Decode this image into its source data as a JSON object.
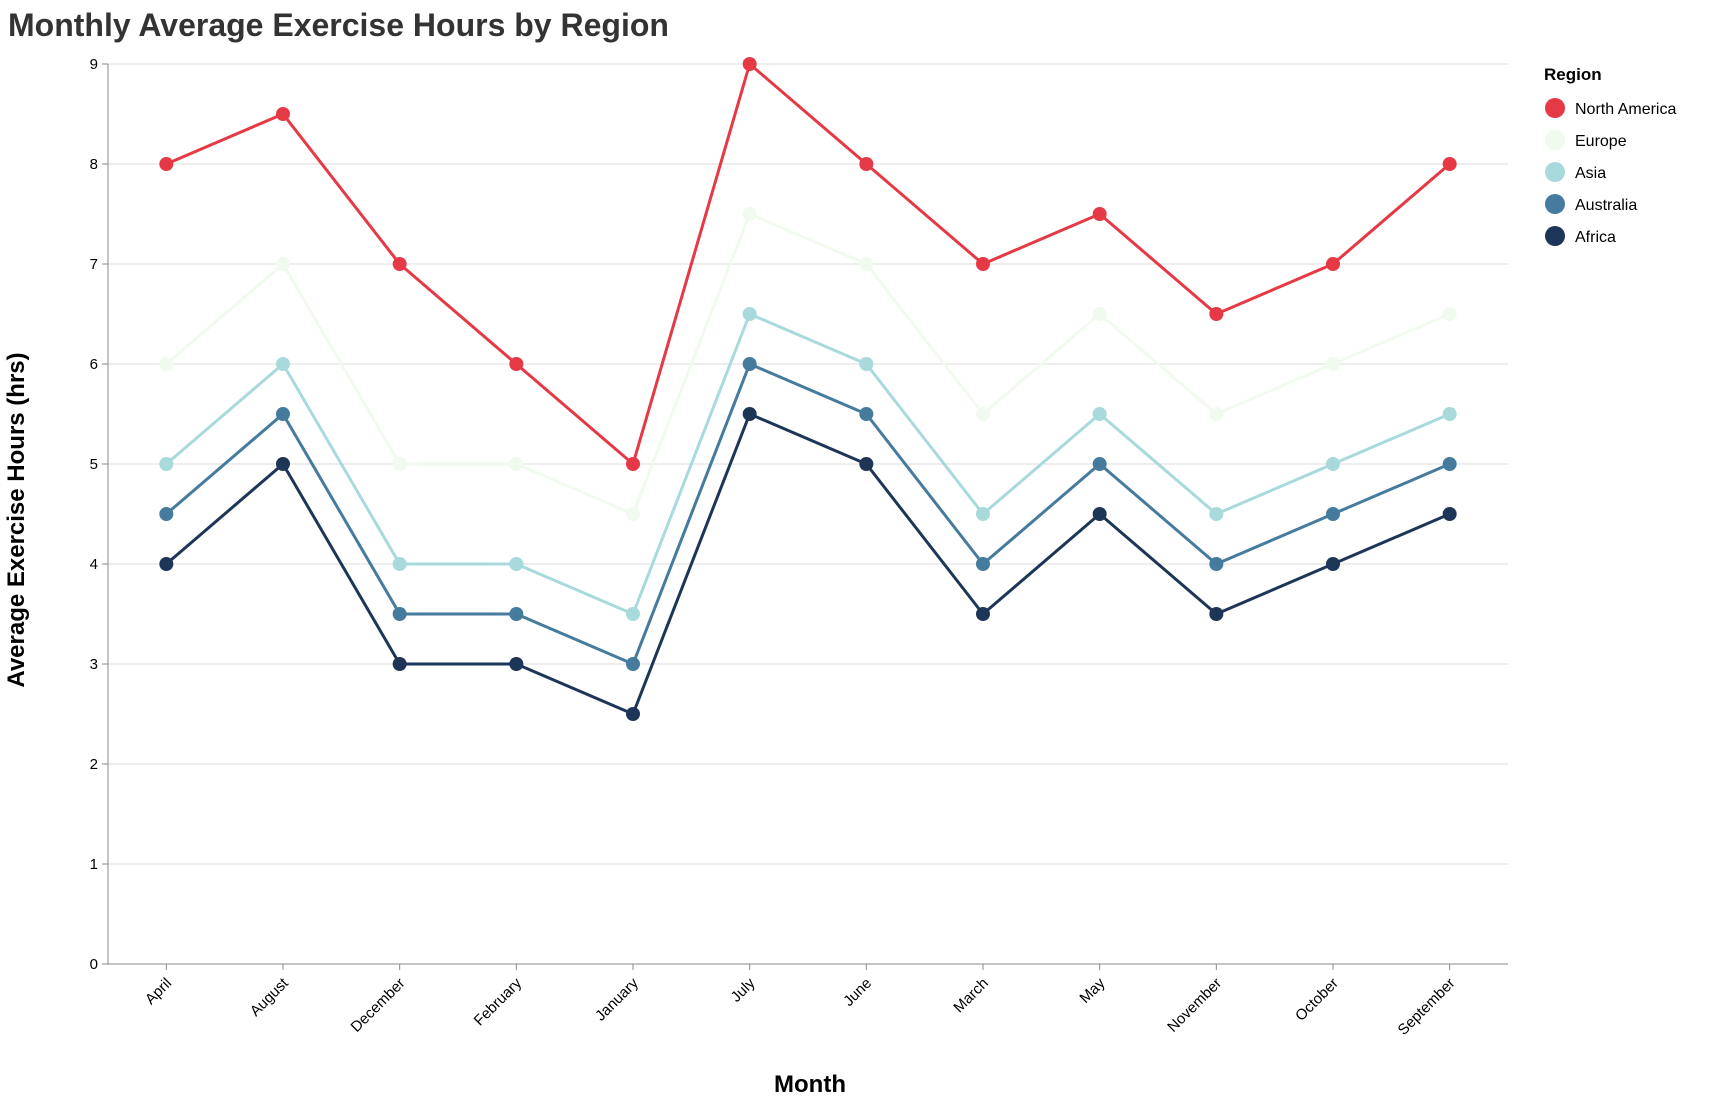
{
  "chart_data": {
    "type": "line",
    "title": "Monthly Average Exercise Hours by Region",
    "xlabel": "Month",
    "ylabel": "Average Exercise Hours (hrs)",
    "ylim": [
      0,
      9
    ],
    "yticks": [
      0,
      1,
      2,
      3,
      4,
      5,
      6,
      7,
      8,
      9
    ],
    "grid": true,
    "legend_title": "Region",
    "legend_position": "top-right",
    "categories": [
      "April",
      "August",
      "December",
      "February",
      "January",
      "July",
      "June",
      "March",
      "May",
      "November",
      "October",
      "September"
    ],
    "series": [
      {
        "name": "North America",
        "color": "#e63946",
        "values": [
          8,
          8.5,
          7,
          6,
          5,
          9,
          8,
          7,
          7.5,
          6.5,
          7,
          8
        ]
      },
      {
        "name": "Europe",
        "color": "#f1faee",
        "values": [
          6,
          7,
          5,
          5,
          4.5,
          7.5,
          7,
          5.5,
          6.5,
          5.5,
          6,
          6.5
        ]
      },
      {
        "name": "Asia",
        "color": "#a8dadc",
        "values": [
          5,
          6,
          4,
          4,
          3.5,
          6.5,
          6,
          4.5,
          5.5,
          4.5,
          5,
          5.5
        ]
      },
      {
        "name": "Australia",
        "color": "#457b9d",
        "values": [
          4.5,
          5.5,
          3.5,
          3.5,
          3,
          6,
          5.5,
          4,
          5,
          4,
          4.5,
          5
        ]
      },
      {
        "name": "Africa",
        "color": "#1d3557",
        "values": [
          4,
          5,
          3,
          3,
          2.5,
          5.5,
          5,
          3.5,
          4.5,
          3.5,
          4,
          4.5
        ]
      }
    ]
  }
}
